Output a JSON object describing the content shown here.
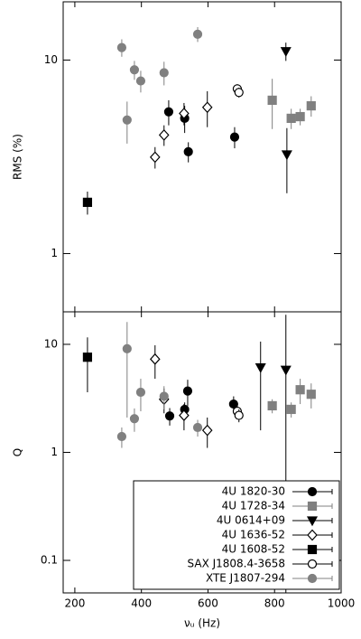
{
  "chart_data": [
    {
      "type": "scatter",
      "ylabel": "RMS (%)",
      "log_y": true,
      "xlim": [
        165,
        1000
      ],
      "xticks": [
        200,
        400,
        600,
        800,
        1000
      ],
      "ylim": [
        0.5,
        20
      ],
      "yticks": [
        1,
        10
      ],
      "series": [
        {
          "name": "4U 1820-30",
          "color": "#000000",
          "marker": "circle",
          "filled": true,
          "x": [
            482,
            530,
            541,
            680
          ],
          "values": [
            5.4,
            5.0,
            3.36,
            4.0
          ],
          "yerr": [
            0.8,
            0.8,
            0.4,
            0.5
          ]
        },
        {
          "name": "4U 1728-34",
          "color": "#808080",
          "marker": "square",
          "filled": true,
          "x": [
            793,
            850,
            877,
            910
          ],
          "values": [
            6.2,
            5.0,
            5.1,
            5.8
          ],
          "yerr": [
            1.8,
            0.6,
            0.5,
            0.7
          ]
        },
        {
          "name": "4U 0614+09",
          "color": "#000000",
          "marker": "triangle-down",
          "filled": true,
          "x": [
            834,
            837
          ],
          "values": [
            11.1,
            3.25
          ],
          "yerr": [
            1.2,
            1.2
          ]
        },
        {
          "name": "4U 1636-52",
          "color": "#000000",
          "marker": "diamond",
          "filled": false,
          "x": [
            441,
            468,
            528,
            598
          ],
          "values": [
            3.15,
            4.1,
            5.3,
            5.7
          ],
          "yerr": [
            0.4,
            0.5,
            0.7,
            1.2
          ]
        },
        {
          "name": "4U 1608-52",
          "color": "#000000",
          "marker": "square",
          "filled": true,
          "x": [
            238
          ],
          "values": [
            1.84
          ],
          "yerr": [
            0.25
          ]
        },
        {
          "name": "SAX J1808.4-3658",
          "color": "#000000",
          "marker": "circle",
          "filled": false,
          "x": [
            688,
            693
          ],
          "values": [
            7.1,
            6.8
          ],
          "yerr": [
            0.4,
            0.4
          ]
        },
        {
          "name": "XTE J1807-294",
          "color": "#808080",
          "marker": "circle",
          "filled": true,
          "x": [
            341,
            379,
            398,
            468,
            569,
            357
          ],
          "values": [
            11.6,
            8.9,
            7.8,
            8.6,
            13.6,
            4.9
          ],
          "yerr": [
            1.2,
            1.0,
            1.0,
            1.2,
            1.2,
            1.2
          ]
        }
      ]
    },
    {
      "type": "scatter",
      "ylabel": "Q",
      "xlabel": "νᵤ (Hz)",
      "log_y": true,
      "legend": "lower right",
      "xlim": [
        165,
        1000
      ],
      "xticks": [
        200,
        400,
        600,
        800,
        1000
      ],
      "ylim": [
        0.05,
        20
      ],
      "yticks": [
        0.1,
        1,
        10
      ],
      "series": [
        {
          "name": "4U 1820-30",
          "color": "#000000",
          "marker": "circle",
          "filled": true,
          "x": [
            485,
            530,
            539,
            677
          ],
          "values": [
            2.17,
            2.5,
            3.7,
            2.8
          ],
          "yerr": [
            0.4,
            0.4,
            1.0,
            0.5
          ]
        },
        {
          "name": "4U 1728-34",
          "color": "#808080",
          "marker": "square",
          "filled": true,
          "x": [
            793,
            850,
            877,
            910
          ],
          "values": [
            2.7,
            2.5,
            3.8,
            3.45
          ],
          "yerr": [
            0.4,
            0.4,
            1.0,
            0.9
          ]
        },
        {
          "name": "4U 0614+09",
          "color": "#000000",
          "marker": "triangle-down",
          "filled": true,
          "x": [
            758,
            834
          ],
          "values": [
            6.1,
            5.8
          ],
          "yerr": [
            4.5,
            13
          ]
        },
        {
          "name": "4U 1636-52",
          "color": "#000000",
          "marker": "diamond",
          "filled": false,
          "x": [
            441,
            468,
            528,
            598
          ],
          "values": [
            7.3,
            3.1,
            2.2,
            1.6
          ],
          "yerr": [
            2.5,
            0.8,
            0.6,
            0.5
          ]
        },
        {
          "name": "4U 1608-52",
          "color": "#000000",
          "marker": "square",
          "filled": true,
          "x": [
            238
          ],
          "values": [
            7.6
          ],
          "yerr": [
            4
          ]
        },
        {
          "name": "SAX J1808.4-3658",
          "color": "#000000",
          "marker": "circle",
          "filled": false,
          "x": [
            688,
            693
          ],
          "values": [
            2.4,
            2.2
          ],
          "yerr": [
            0.3,
            0.3
          ]
        },
        {
          "name": "XTE J1807-294",
          "color": "#808080",
          "marker": "circle",
          "filled": true,
          "x": [
            341,
            357,
            379,
            398,
            468,
            569
          ],
          "values": [
            1.4,
            9.1,
            2.05,
            3.6,
            3.3,
            1.7
          ],
          "yerr": [
            0.3,
            7,
            0.5,
            1.2,
            0.8,
            0.3
          ]
        }
      ]
    }
  ]
}
